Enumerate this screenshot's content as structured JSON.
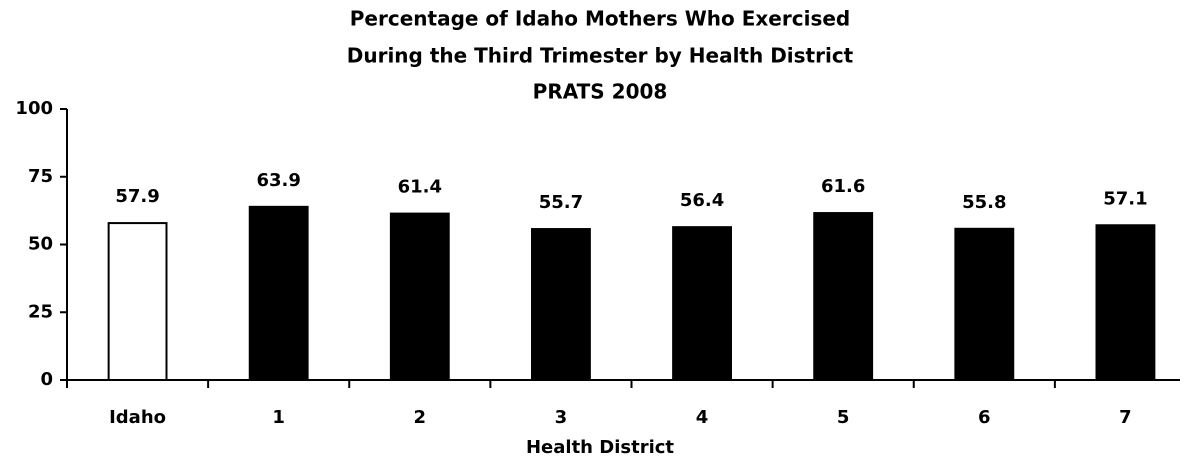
{
  "chart_data": {
    "type": "bar",
    "title": [
      "Percentage of Idaho Mothers Who Exercised",
      "During the Third Trimester by Health District",
      "PRATS 2008"
    ],
    "x_label": "Health District",
    "categories": [
      "Idaho",
      "1",
      "2",
      "3",
      "4",
      "5",
      "6",
      "7"
    ],
    "values": [
      57.9,
      63.9,
      61.4,
      55.7,
      56.4,
      61.6,
      55.8,
      57.1
    ],
    "colors": [
      "#ffffff",
      "#000000",
      "#000000",
      "#000000",
      "#000000",
      "#000000",
      "#000000",
      "#000000"
    ],
    "ylim": [
      0,
      100
    ],
    "yticks": [
      0,
      25,
      50,
      75,
      100
    ],
    "grid": false
  }
}
